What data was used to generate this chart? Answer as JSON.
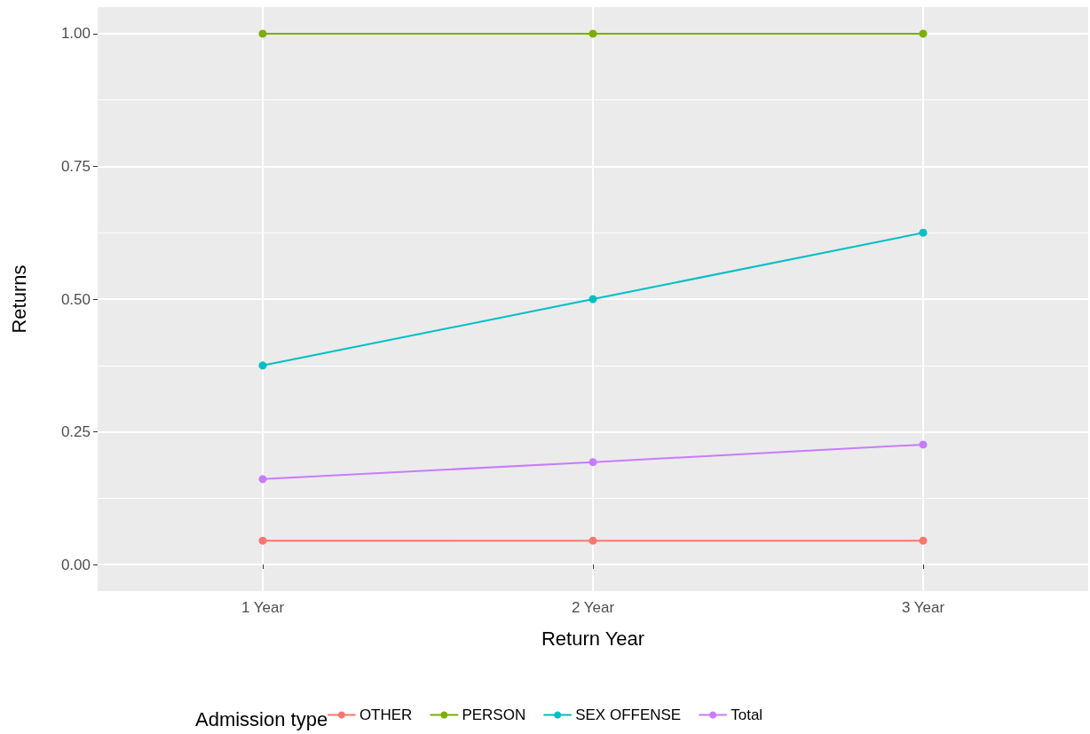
{
  "chart_data": {
    "type": "line",
    "xlabel": "Return Year",
    "ylabel": "Returns",
    "legend_title": "Admission type",
    "categories": [
      "1 Year",
      "2 Year",
      "3 Year"
    ],
    "series": [
      {
        "name": "OTHER",
        "color": "#f8766d",
        "values": [
          0.045,
          0.045,
          0.045
        ]
      },
      {
        "name": "PERSON",
        "color": "#7cae00",
        "values": [
          1,
          1,
          1
        ]
      },
      {
        "name": "SEX OFFENSE",
        "color": "#00bfc4",
        "values": [
          0.375,
          0.5,
          0.625
        ]
      },
      {
        "name": "Total",
        "color": "#c77cff",
        "values": [
          0.161,
          0.193,
          0.226
        ]
      }
    ],
    "ylim": [
      -0.05,
      1.05
    ],
    "yticks": [
      {
        "value": 0,
        "label": "0.00"
      },
      {
        "value": 0.25,
        "label": "0.25"
      },
      {
        "value": 0.5,
        "label": "0.50"
      },
      {
        "value": 0.75,
        "label": "0.75"
      },
      {
        "value": 1,
        "label": "1.00"
      }
    ],
    "grid": true,
    "legend": "bottom",
    "marker": "circle",
    "line_style": "solid"
  }
}
